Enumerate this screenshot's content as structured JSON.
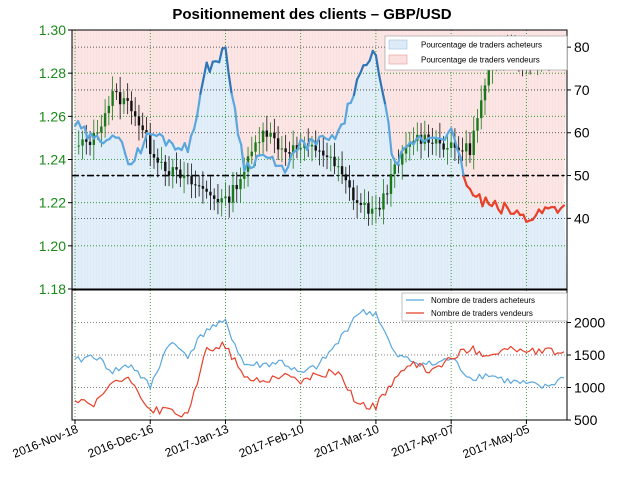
{
  "colors": {
    "buyers_line": "#2e75b6",
    "buyers_line_light": "#5aa7df",
    "sellers_line": "#e8402a",
    "buyers_fill": "#dcebf7",
    "sellers_fill": "#fbe0e0",
    "candle_up": "#1a7a1a",
    "candle_down": "#111111",
    "price_axis": "#1a8a1a",
    "grid_green": "#1a8a1a",
    "grid_black": "#555555"
  },
  "chart_data": [
    {
      "type": "line",
      "title": "Positionnement des clients – GBP/USD",
      "x": [
        "2016-Nov-18",
        "2016-Nov-25",
        "2016-Dec-02",
        "2016-Dec-09",
        "2016-Dec-16",
        "2016-Dec-23",
        "2016-Dec-30",
        "2017-Jan-06",
        "2017-Jan-13",
        "2017-Jan-20",
        "2017-Jan-27",
        "2017-Feb-03",
        "2017-Feb-10",
        "2017-Feb-17",
        "2017-Feb-24",
        "2017-Mar-03",
        "2017-Mar-10",
        "2017-Mar-17",
        "2017-Mar-24",
        "2017-Mar-31",
        "2017-Apr-07",
        "2017-Apr-14",
        "2017-Apr-21",
        "2017-Apr-28",
        "2017-May-05",
        "2017-May-12",
        "2017-May-16"
      ],
      "x_tick_labels": [
        "2016-Nov-18",
        "2016-Dec-16",
        "2017-Jan-13",
        "2017-Feb-10",
        "2017-Mar-10",
        "2017-Apr-07",
        "2017-May-05"
      ],
      "left_axis": {
        "ylim": [
          1.18,
          1.3
        ],
        "ticks": [
          "1.18",
          "1.20",
          "1.22",
          "1.24",
          "1.26",
          "1.28",
          "1.30"
        ]
      },
      "right_axis": {
        "ylim": [
          23.5,
          84
        ],
        "ticks": [
          "40",
          "50",
          "60",
          "70",
          "80"
        ]
      },
      "reference_line": 50,
      "legend": {
        "position": "top-right",
        "entries": [
          "Pourcentage de traders acheteurs",
          "Pourcentage de traders vendeurs"
        ]
      },
      "series": [
        {
          "name": "Pourcentage de traders acheteurs",
          "values": [
            62,
            58,
            60,
            53,
            60,
            58,
            56,
            75,
            79,
            52,
            55,
            51,
            57,
            58,
            59,
            72,
            79,
            52,
            58,
            59,
            60,
            46,
            43,
            42,
            40,
            42,
            43
          ]
        },
        {
          "name": "Pourcentage de traders vendeurs",
          "values": [
            38,
            42,
            40,
            47,
            40,
            42,
            44,
            25,
            21,
            48,
            45,
            49,
            43,
            42,
            41,
            28,
            21,
            48,
            42,
            41,
            40,
            54,
            57,
            58,
            60,
            58,
            57
          ]
        }
      ],
      "price_close": [
        1.245,
        1.25,
        1.27,
        1.265,
        1.245,
        1.235,
        1.23,
        1.225,
        1.22,
        1.235,
        1.255,
        1.245,
        1.245,
        1.245,
        1.235,
        1.22,
        1.215,
        1.235,
        1.25,
        1.25,
        1.245,
        1.245,
        1.28,
        1.295,
        1.285,
        1.29,
        1.29
      ]
    },
    {
      "type": "line",
      "x": [
        "2016-Nov-18",
        "2016-Nov-25",
        "2016-Dec-02",
        "2016-Dec-09",
        "2016-Dec-16",
        "2016-Dec-23",
        "2016-Dec-30",
        "2017-Jan-06",
        "2017-Jan-13",
        "2017-Jan-20",
        "2017-Jan-27",
        "2017-Feb-03",
        "2017-Feb-10",
        "2017-Feb-17",
        "2017-Feb-24",
        "2017-Mar-03",
        "2017-Mar-10",
        "2017-Mar-17",
        "2017-Mar-24",
        "2017-Mar-31",
        "2017-Apr-07",
        "2017-Apr-14",
        "2017-Apr-21",
        "2017-Apr-28",
        "2017-May-05",
        "2017-May-12",
        "2017-May-16"
      ],
      "right_axis": {
        "ylim": [
          500,
          2500
        ],
        "ticks": [
          "500",
          "1000",
          "1500",
          "2000"
        ]
      },
      "legend": {
        "position": "top-right",
        "entries": [
          "Nombre de traders acheteurs",
          "Nombre de traders vendeurs"
        ]
      },
      "series": [
        {
          "name": "Nombre de traders acheteurs",
          "values": [
            1400,
            1500,
            1250,
            1350,
            1000,
            1700,
            1500,
            1900,
            2000,
            1350,
            1350,
            1400,
            1200,
            1350,
            1700,
            2150,
            2150,
            1500,
            1400,
            1350,
            1450,
            1150,
            1200,
            1100,
            1050,
            1000,
            1150
          ]
        },
        {
          "name": "Nombre de traders vendeurs",
          "values": [
            800,
            700,
            1100,
            1100,
            650,
            650,
            550,
            1600,
            1650,
            1150,
            1100,
            1200,
            1100,
            1200,
            1250,
            750,
            700,
            1150,
            1350,
            1250,
            1450,
            1600,
            1500,
            1600,
            1550,
            1550,
            1550
          ]
        }
      ]
    }
  ]
}
